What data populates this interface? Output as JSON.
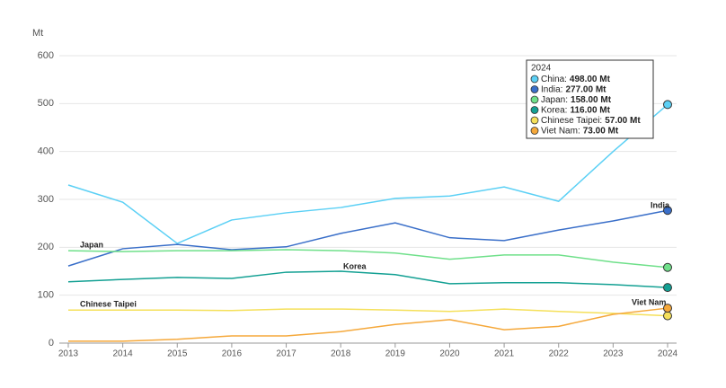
{
  "chart_data": {
    "type": "line",
    "y_label": "Mt",
    "x": [
      2013,
      2014,
      2015,
      2016,
      2017,
      2018,
      2019,
      2020,
      2021,
      2022,
      2023,
      2024
    ],
    "xlim": [
      2013,
      2024
    ],
    "xticks": [
      2013,
      2014,
      2015,
      2016,
      2017,
      2018,
      2019,
      2020,
      2021,
      2022,
      2023,
      2024
    ],
    "ylim": [
      0,
      600
    ],
    "yticks": [
      0,
      100,
      200,
      300,
      400,
      500,
      600
    ],
    "grid": true,
    "series": [
      {
        "name": "China",
        "color": "#5bd0f5",
        "values": [
          330,
          294,
          208,
          257,
          272,
          283,
          302,
          307,
          326,
          296,
          400,
          498
        ]
      },
      {
        "name": "India",
        "color": "#3a6fc9",
        "values": [
          161,
          197,
          206,
          195,
          201,
          229,
          251,
          220,
          214,
          236,
          255,
          277
        ]
      },
      {
        "name": "Japan",
        "color": "#6fe08a",
        "values": [
          193,
          191,
          193,
          193,
          195,
          193,
          188,
          175,
          184,
          184,
          169,
          158
        ]
      },
      {
        "name": "Korea",
        "color": "#13a093",
        "values": [
          128,
          133,
          137,
          135,
          148,
          150,
          143,
          124,
          126,
          126,
          122,
          116
        ]
      },
      {
        "name": "Chinese Taipei",
        "color": "#f5e05a",
        "values": [
          69,
          69,
          69,
          68,
          71,
          71,
          69,
          66,
          71,
          66,
          62,
          57
        ]
      },
      {
        "name": "Viet Nam",
        "color": "#f5a83a",
        "values": [
          4,
          4,
          8,
          15,
          15,
          24,
          39,
          49,
          28,
          35,
          60,
          73
        ]
      }
    ],
    "tooltip": {
      "rows": [
        {
          "label": "China:",
          "value": "498.00 Mt"
        },
        {
          "label": "India:",
          "value": "277.00 Mt"
        },
        {
          "label": "Japan:",
          "value": "158.00 Mt"
        },
        {
          "label": "Korea:",
          "value": "116.00 Mt"
        },
        {
          "label": "Chinese Taipei:",
          "value": "57.00 Mt"
        },
        {
          "label": "Viet Nam:",
          "value": "73.00 Mt"
        }
      ]
    }
  }
}
